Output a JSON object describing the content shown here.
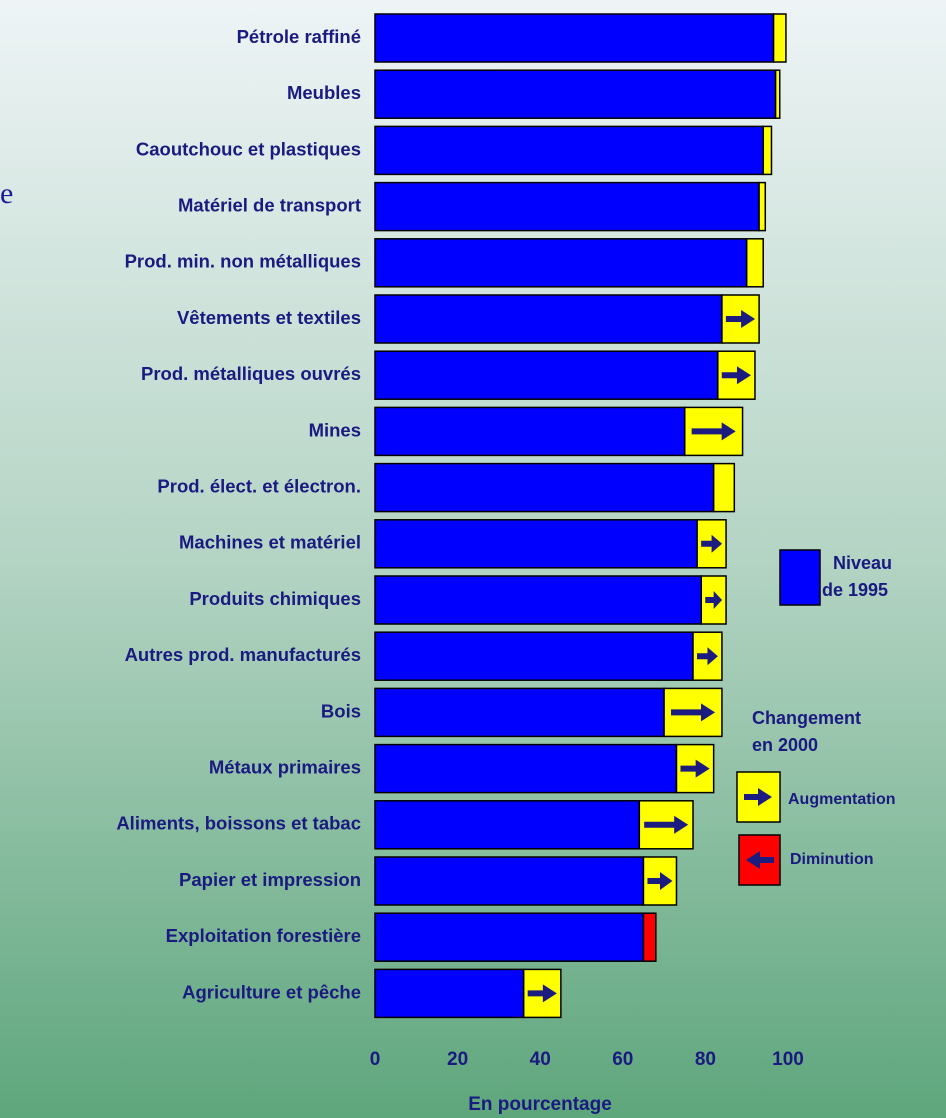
{
  "chart_data": {
    "type": "bar",
    "title_fragment": "e",
    "categories": [
      "Pétrole raffiné",
      "Meubles",
      "Caoutchouc et plastiques",
      "Matériel de transport",
      "Prod. min. non métalliques",
      "Vêtements et textiles",
      "Prod. métalliques ouvrés",
      "Mines",
      "Prod. élect. et électron.",
      "Machines et matériel",
      "Produits chimiques",
      "Autres prod. manufacturés",
      "Bois",
      "Métaux primaires",
      "Aliments, boissons et tabac",
      "Papier et impression",
      "Exploitation forestière",
      "Agriculture et pêche"
    ],
    "series": [
      {
        "name": [
          "Niveau",
          "de 1995"
        ],
        "color": "#0000ff",
        "values": [
          96.5,
          97,
          94,
          93,
          90,
          84,
          83,
          75,
          82,
          78,
          79,
          77,
          70,
          73,
          64,
          65,
          68,
          36
        ]
      },
      {
        "name": [
          "Changement",
          "en 2000"
        ],
        "color": "#ffff00",
        "negative_color": "#ff0000",
        "values": [
          3,
          1,
          2,
          1.5,
          4,
          9,
          9,
          14,
          5,
          7,
          6,
          7,
          14,
          9,
          13,
          8,
          -3,
          9
        ]
      }
    ],
    "change_legend": {
      "increase": "Augmentation",
      "decrease": "Diminution"
    },
    "arrow_color": "#1c1c80",
    "xlabel": "En pourcentage",
    "xlim": [
      0,
      100
    ],
    "xticks": [
      0,
      20,
      40,
      60,
      80,
      100
    ]
  }
}
